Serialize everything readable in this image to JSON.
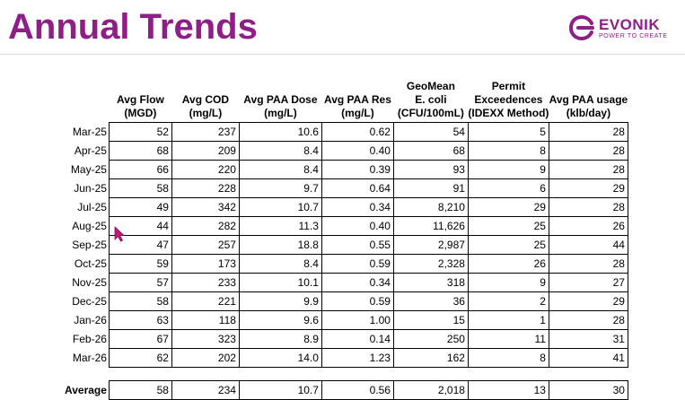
{
  "title": "Annual Trends",
  "logo": {
    "word": "EVONIK",
    "tagline": "POWER TO CREATE",
    "mark": "evonik-logo-icon",
    "color": "#8f1f86"
  },
  "table": {
    "headers": [
      "Avg Flow\n(MGD)",
      "Avg COD\n(mg/L)",
      "Avg PAA Dose\n(mg/L)",
      "Avg  PAA Res\n(mg/L)",
      "GeoMean\nE. coli\n(CFU/100mL)",
      "Permit\nExceedences\n(IDEXX Method)",
      "Avg PAA usage\n(klb/day)"
    ],
    "rows": [
      {
        "label": "Mar-25",
        "values": [
          "52",
          "237",
          "10.6",
          "0.62",
          "54",
          "5",
          "28"
        ]
      },
      {
        "label": "Apr-25",
        "values": [
          "68",
          "209",
          "8.4",
          "0.40",
          "68",
          "8",
          "28"
        ]
      },
      {
        "label": "May-25",
        "values": [
          "66",
          "220",
          "8.4",
          "0.39",
          "93",
          "9",
          "28"
        ]
      },
      {
        "label": "Jun-25",
        "values": [
          "58",
          "228",
          "9.7",
          "0.64",
          "91",
          "6",
          "29"
        ]
      },
      {
        "label": "Jul-25",
        "values": [
          "49",
          "342",
          "10.7",
          "0.34",
          "8,210",
          "29",
          "28"
        ]
      },
      {
        "label": "Aug-25",
        "values": [
          "44",
          "282",
          "11.3",
          "0.40",
          "11,626",
          "25",
          "26"
        ]
      },
      {
        "label": "Sep-25",
        "values": [
          "47",
          "257",
          "18.8",
          "0.55",
          "2,987",
          "25",
          "44"
        ]
      },
      {
        "label": "Oct-25",
        "values": [
          "59",
          "173",
          "8.4",
          "0.59",
          "2,328",
          "26",
          "28"
        ]
      },
      {
        "label": "Nov-25",
        "values": [
          "57",
          "233",
          "10.1",
          "0.34",
          "318",
          "9",
          "27"
        ]
      },
      {
        "label": "Dec-25",
        "values": [
          "58",
          "221",
          "9.9",
          "0.59",
          "36",
          "2",
          "29"
        ]
      },
      {
        "label": "Jan-26",
        "values": [
          "63",
          "118",
          "9.6",
          "1.00",
          "15",
          "1",
          "28"
        ]
      },
      {
        "label": "Feb-26",
        "values": [
          "67",
          "323",
          "8.9",
          "0.14",
          "250",
          "11",
          "31"
        ]
      },
      {
        "label": "Mar-26",
        "values": [
          "62",
          "202",
          "14.0",
          "1.23",
          "162",
          "8",
          "41"
        ]
      }
    ],
    "average": {
      "label": "Average",
      "values": [
        "58",
        "234",
        "10.7",
        "0.56",
        "2,018",
        "13",
        "30"
      ]
    }
  }
}
